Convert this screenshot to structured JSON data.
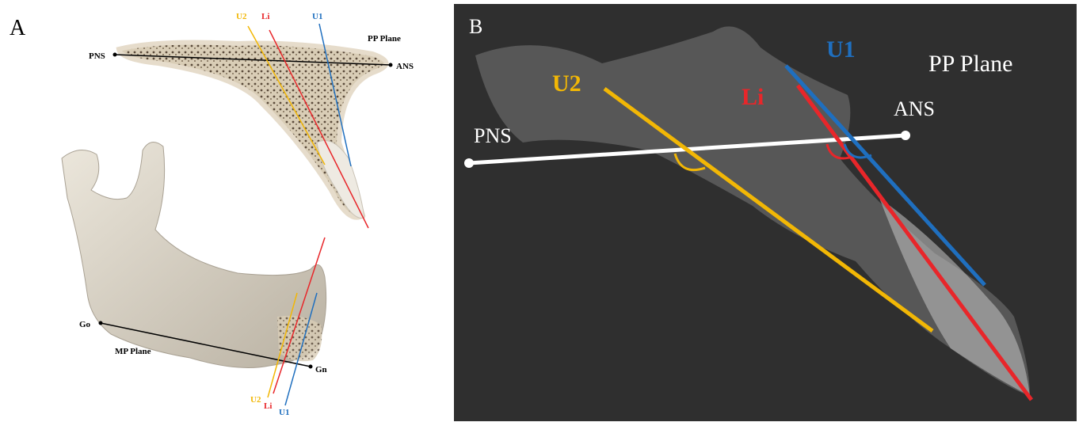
{
  "panel_a": {
    "label": "A",
    "maxilla": {
      "plane": "PP Plane",
      "points": [
        "PNS",
        "ANS"
      ],
      "lines": [
        "U2",
        "Li",
        "U1"
      ]
    },
    "mandible": {
      "plane": "MP Plane",
      "points": [
        "Go",
        "Gn"
      ],
      "lines": [
        "U2",
        "Li",
        "U1"
      ]
    }
  },
  "panel_b": {
    "label": "B",
    "plane": "PP Plane",
    "points": [
      "PNS",
      "ANS"
    ],
    "lines": [
      "U2",
      "Li",
      "U1"
    ]
  }
}
